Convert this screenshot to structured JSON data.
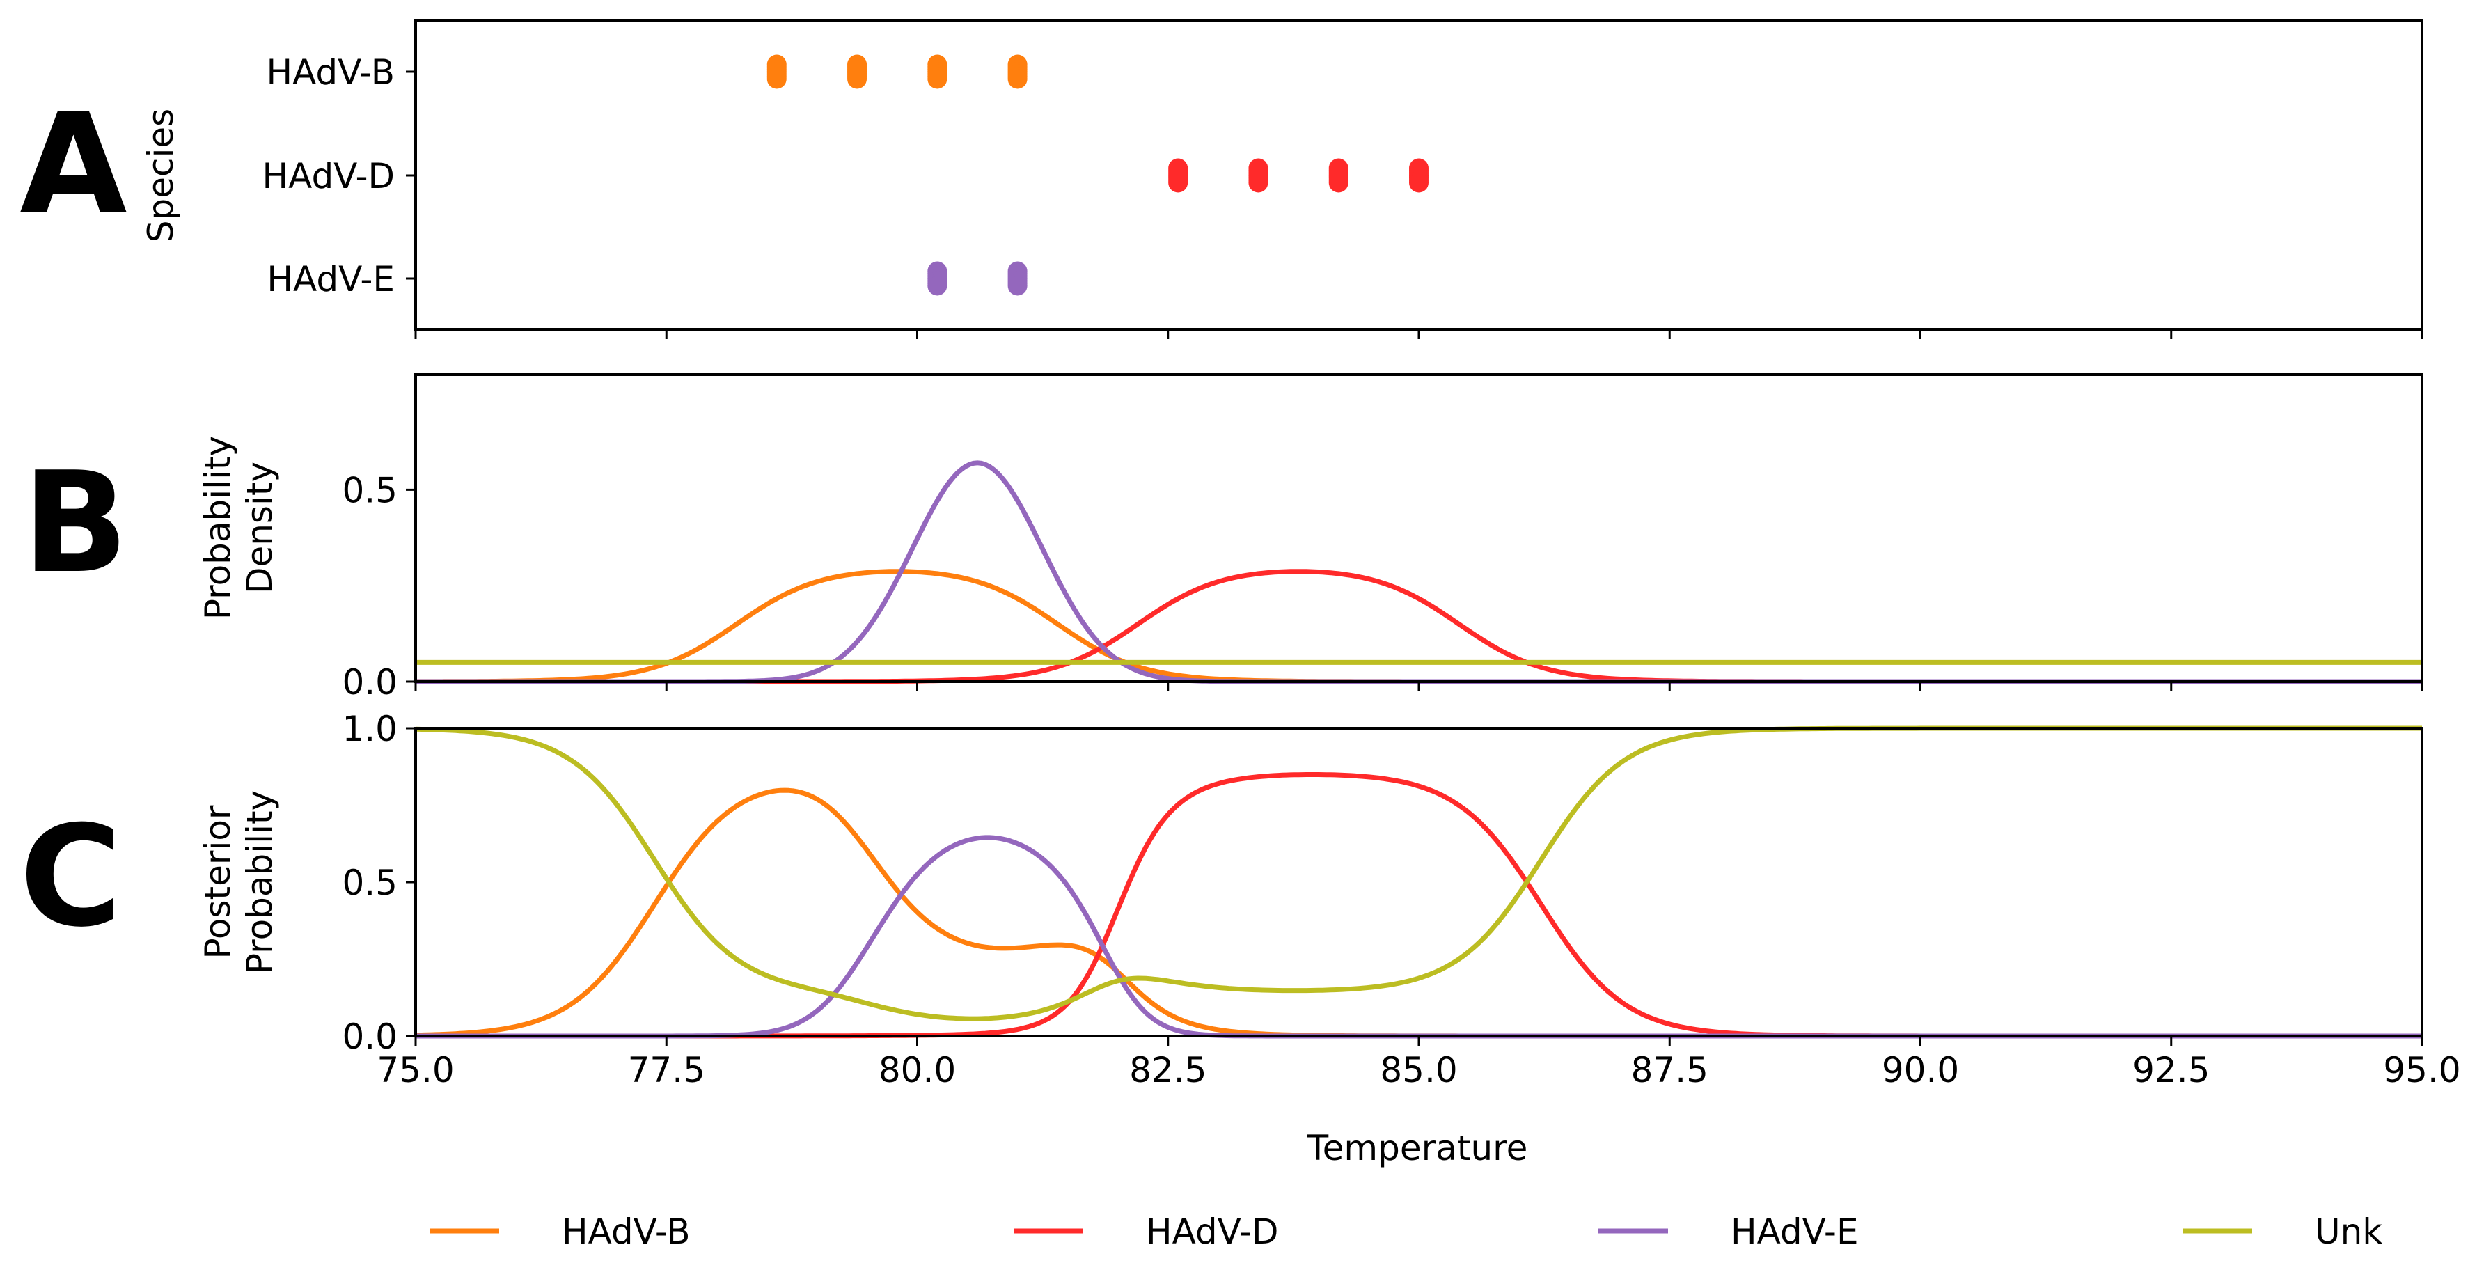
{
  "figure": {
    "panel_letters": [
      "A",
      "B",
      "C"
    ],
    "shared_xlabel": "Temperature"
  },
  "chart_data": [
    {
      "panel": "A",
      "type": "scatter",
      "ylabel": "Species",
      "xlim": [
        75,
        95
      ],
      "categories": [
        "HAdV-B",
        "HAdV-D",
        "HAdV-E"
      ],
      "series": [
        {
          "name": "HAdV-B",
          "color": "#ff7f0e",
          "x": [
            78.6,
            79.4,
            80.2,
            81.0
          ]
        },
        {
          "name": "HAdV-D",
          "color": "#ff2a2a",
          "x": [
            82.6,
            83.4,
            84.2,
            85.0
          ]
        },
        {
          "name": "HAdV-E",
          "color": "#9467bd",
          "x": [
            80.2,
            81.0
          ]
        }
      ]
    },
    {
      "panel": "B",
      "type": "line",
      "ylabel": [
        "Probability",
        "Density"
      ],
      "xlim": [
        75,
        95
      ],
      "ylim": [
        0,
        0.8
      ],
      "yticks": [
        "0.0",
        "0.5"
      ],
      "ytick_values": [
        0,
        0.5
      ],
      "series": [
        {
          "name": "HAdV-B",
          "color": "#ff7f0e",
          "curve": "plateau",
          "params": {
            "lo": 78.2,
            "hi": 81.4,
            "height": 0.3,
            "width": 0.42
          }
        },
        {
          "name": "HAdV-D",
          "color": "#ff2a2a",
          "curve": "plateau",
          "params": {
            "lo": 82.2,
            "hi": 85.4,
            "height": 0.3,
            "width": 0.42
          }
        },
        {
          "name": "HAdV-E",
          "color": "#9467bd",
          "curve": "gauss",
          "params": {
            "mu": 80.6,
            "sigma": 0.65,
            "peak": 0.57
          }
        },
        {
          "name": "Unk",
          "color": "#bcbd22",
          "curve": "constant",
          "params": {
            "value": 0.05
          }
        }
      ]
    },
    {
      "panel": "C",
      "type": "line",
      "ylabel": [
        "Posterior",
        "Probability"
      ],
      "xlim": [
        75,
        95
      ],
      "ylim": [
        0,
        1
      ],
      "yticks": [
        "0.0",
        "0.5",
        "1.0"
      ],
      "ytick_values": [
        0,
        0.5,
        1.0
      ],
      "xticks": [
        "75.0",
        "77.5",
        "80.0",
        "82.5",
        "85.0",
        "87.5",
        "90.0",
        "92.5",
        "95.0"
      ],
      "xtick_values": [
        75,
        77.5,
        80,
        82.5,
        85,
        87.5,
        90,
        92.5,
        95
      ],
      "xlabel": "Temperature",
      "series": [
        {
          "name": "HAdV-B",
          "color": "#ff7f0e",
          "curve": "posterior"
        },
        {
          "name": "HAdV-D",
          "color": "#ff2a2a",
          "curve": "posterior"
        },
        {
          "name": "HAdV-E",
          "color": "#9467bd",
          "curve": "posterior"
        },
        {
          "name": "Unk",
          "color": "#bcbd22",
          "curve": "posterior"
        }
      ]
    }
  ],
  "legend": {
    "placement": "bottom",
    "entries": [
      {
        "label": "HAdV-B",
        "color": "#ff7f0e"
      },
      {
        "label": "HAdV-D",
        "color": "#ff2a2a"
      },
      {
        "label": "HAdV-E",
        "color": "#9467bd"
      },
      {
        "label": "Unk",
        "color": "#bcbd22"
      }
    ]
  }
}
